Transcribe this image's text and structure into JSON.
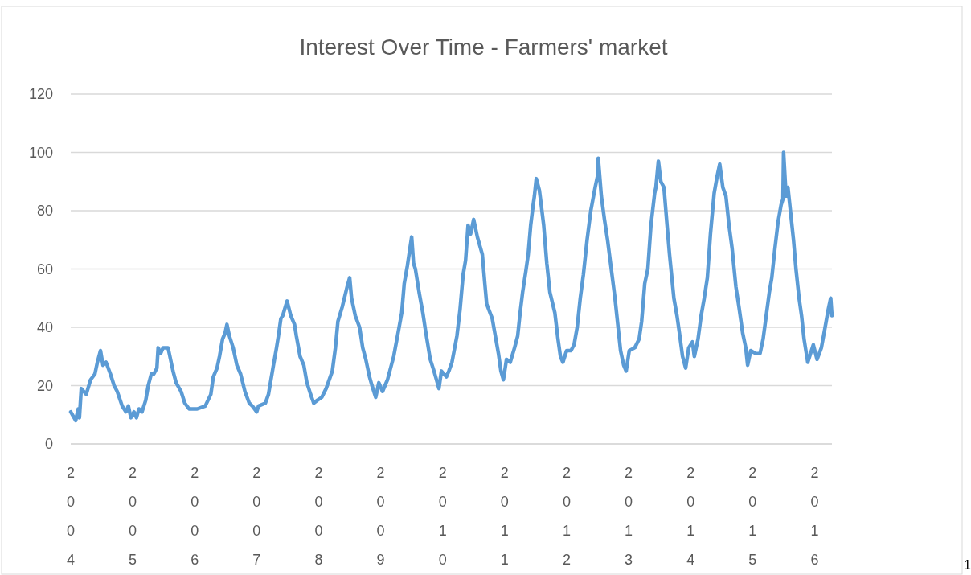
{
  "chart_data": {
    "type": "line",
    "title": "Interest Over Time - Farmers' market",
    "x": [
      2004.0,
      2004.08,
      2004.12,
      2004.14,
      2004.17,
      2004.25,
      2004.32,
      2004.39,
      2004.43,
      2004.48,
      2004.52,
      2004.57,
      2004.64,
      2004.7,
      2004.75,
      2004.83,
      2004.89,
      2004.93,
      2004.97,
      2005.02,
      2005.06,
      2005.1,
      2005.15,
      2005.21,
      2005.25,
      2005.3,
      2005.34,
      2005.39,
      2005.41,
      2005.45,
      2005.49,
      2005.57,
      2005.61,
      2005.65,
      2005.7,
      2005.78,
      2005.84,
      2005.91,
      2006.04,
      2006.17,
      2006.26,
      2006.3,
      2006.36,
      2006.4,
      2006.45,
      2006.49,
      2006.52,
      2006.56,
      2006.62,
      2006.68,
      2006.74,
      2006.81,
      2006.88,
      2006.93,
      2007.0,
      2007.03,
      2007.14,
      2007.19,
      2007.23,
      2007.27,
      2007.32,
      2007.35,
      2007.39,
      2007.42,
      2007.49,
      2007.55,
      2007.61,
      2007.64,
      2007.7,
      2007.76,
      2007.81,
      2007.87,
      2007.92,
      2007.98,
      2008.05,
      2008.12,
      2008.22,
      2008.27,
      2008.31,
      2008.38,
      2008.46,
      2008.5,
      2008.53,
      2008.59,
      2008.66,
      2008.71,
      2008.76,
      2008.82,
      2008.86,
      2008.92,
      2008.97,
      2009.03,
      2009.11,
      2009.21,
      2009.28,
      2009.34,
      2009.38,
      2009.43,
      2009.5,
      2009.53,
      2009.56,
      2009.62,
      2009.68,
      2009.73,
      2009.8,
      2009.86,
      2009.9,
      2009.94,
      2009.98,
      2010.06,
      2010.1,
      2010.15,
      2010.23,
      2010.28,
      2010.33,
      2010.37,
      2010.41,
      2010.45,
      2010.5,
      2010.56,
      2010.64,
      2010.68,
      2010.71,
      2010.8,
      2010.85,
      2010.9,
      2010.94,
      2010.98,
      2011.03,
      2011.09,
      2011.16,
      2011.21,
      2011.25,
      2011.29,
      2011.34,
      2011.38,
      2011.42,
      2011.46,
      2011.48,
      2011.51,
      2011.56,
      2011.59,
      2011.63,
      2011.68,
      2011.73,
      2011.81,
      2011.86,
      2011.9,
      2011.94,
      2012.0,
      2012.07,
      2012.12,
      2012.17,
      2012.22,
      2012.27,
      2012.33,
      2012.39,
      2012.46,
      2012.5,
      2012.51,
      2012.56,
      2012.61,
      2012.66,
      2012.72,
      2012.78,
      2012.83,
      2012.87,
      2012.92,
      2012.96,
      2013.01,
      2013.1,
      2013.17,
      2013.21,
      2013.26,
      2013.31,
      2013.36,
      2013.42,
      2013.44,
      2013.48,
      2013.52,
      2013.57,
      2013.62,
      2013.66,
      2013.73,
      2013.78,
      2013.82,
      2013.87,
      2013.92,
      2013.97,
      2014.03,
      2014.06,
      2014.12,
      2014.17,
      2014.22,
      2014.27,
      2014.32,
      2014.38,
      2014.43,
      2014.47,
      2014.52,
      2014.57,
      2014.62,
      2014.67,
      2014.73,
      2014.78,
      2014.84,
      2014.89,
      2014.92,
      2014.97,
      2015.05,
      2015.12,
      2015.17,
      2015.22,
      2015.27,
      2015.31,
      2015.36,
      2015.41,
      2015.46,
      2015.49,
      2015.5,
      2015.54,
      2015.57,
      2015.61,
      2015.66,
      2015.7,
      2015.75,
      2015.79,
      2015.83,
      2015.89,
      2015.98,
      2016.04,
      2016.11,
      2016.17,
      2016.22,
      2016.26,
      2016.28
    ],
    "series": [
      {
        "color": "#5b9bd5",
        "values": [
          11,
          8,
          12,
          9,
          19,
          17,
          22,
          24,
          28,
          32,
          27,
          28,
          24,
          20,
          18,
          13,
          11,
          13,
          9,
          11,
          9,
          12,
          11,
          15,
          20,
          24,
          24,
          26,
          33,
          31,
          33,
          33,
          29,
          25,
          21,
          18,
          14,
          12,
          12,
          13,
          17,
          23,
          26,
          30,
          36,
          38,
          41,
          37,
          33,
          27,
          24,
          18,
          14,
          13,
          11,
          13,
          14,
          17,
          22,
          27,
          33,
          37,
          43,
          44,
          49,
          44,
          41,
          37,
          30,
          27,
          21,
          17,
          14,
          15,
          16,
          19,
          25,
          33,
          42,
          47,
          54,
          57,
          50,
          44,
          40,
          33,
          29,
          23,
          20,
          16,
          21,
          18,
          22,
          30,
          38,
          45,
          55,
          61,
          71,
          62,
          60,
          52,
          45,
          38,
          29,
          25,
          22,
          19,
          25,
          23,
          25,
          28,
          37,
          46,
          58,
          63,
          75,
          72,
          77,
          71,
          65,
          55,
          48,
          43,
          37,
          31,
          25,
          22,
          29,
          28,
          33,
          37,
          45,
          52,
          59,
          65,
          75,
          82,
          85,
          91,
          87,
          82,
          75,
          62,
          52,
          45,
          36,
          30,
          28,
          32,
          32,
          34,
          40,
          50,
          58,
          70,
          80,
          88,
          92,
          98,
          85,
          77,
          70,
          60,
          50,
          40,
          32,
          27,
          25,
          32,
          33,
          36,
          42,
          55,
          60,
          75,
          86,
          88,
          97,
          90,
          88,
          75,
          65,
          50,
          44,
          38,
          30,
          26,
          33,
          35,
          30,
          36,
          44,
          50,
          57,
          72,
          86,
          92,
          96,
          88,
          85,
          75,
          67,
          54,
          47,
          38,
          33,
          27,
          32,
          31,
          31,
          36,
          44,
          52,
          57,
          67,
          76,
          82,
          84,
          100,
          85,
          88,
          80,
          70,
          60,
          50,
          44,
          36,
          28,
          34,
          29,
          33,
          40,
          46,
          50,
          44
        ]
      }
    ],
    "xlim": [
      2004,
      2016.28
    ],
    "xticks": [
      2004,
      2005,
      2006,
      2007,
      2008,
      2009,
      2010,
      2011,
      2012,
      2013,
      2014,
      2015,
      2016
    ],
    "ylim": [
      0,
      120
    ],
    "yticks": [
      0,
      20,
      40,
      60,
      80,
      100,
      120
    ],
    "grid": "y",
    "line_style": "solid",
    "annotations": [
      "1"
    ]
  }
}
